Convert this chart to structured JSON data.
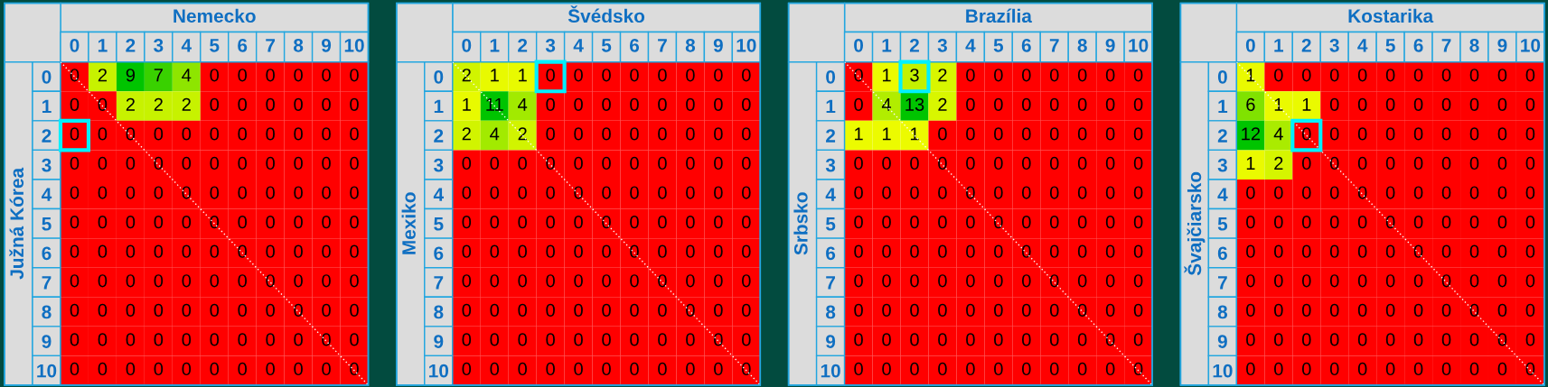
{
  "chart_data": [
    {
      "type": "heatmap",
      "xlabel": "Nemecko",
      "ylabel": "Južná Kórea",
      "data_labels": true,
      "categories": [
        "0",
        "1",
        "2",
        "3",
        "4",
        "5",
        "6",
        "7",
        "8",
        "9",
        "10"
      ],
      "y_categories": [
        "0",
        "1",
        "2",
        "3",
        "4",
        "5",
        "6",
        "7",
        "8",
        "9",
        "10"
      ],
      "cells": [
        [
          0,
          2,
          9,
          7,
          4,
          0,
          0,
          0,
          0,
          0,
          0
        ],
        [
          0,
          0,
          2,
          2,
          2,
          0,
          0,
          0,
          0,
          0,
          0
        ],
        [
          0,
          0,
          0,
          0,
          0,
          0,
          0,
          0,
          0,
          0,
          0
        ],
        [
          0,
          0,
          0,
          0,
          0,
          0,
          0,
          0,
          0,
          0,
          0
        ],
        [
          0,
          0,
          0,
          0,
          0,
          0,
          0,
          0,
          0,
          0,
          0
        ],
        [
          0,
          0,
          0,
          0,
          0,
          0,
          0,
          0,
          0,
          0,
          0
        ],
        [
          0,
          0,
          0,
          0,
          0,
          0,
          0,
          0,
          0,
          0,
          0
        ],
        [
          0,
          0,
          0,
          0,
          0,
          0,
          0,
          0,
          0,
          0,
          0
        ],
        [
          0,
          0,
          0,
          0,
          0,
          0,
          0,
          0,
          0,
          0,
          0
        ],
        [
          0,
          0,
          0,
          0,
          0,
          0,
          0,
          0,
          0,
          0,
          0
        ],
        [
          0,
          0,
          0,
          0,
          0,
          0,
          0,
          0,
          0,
          0,
          0
        ]
      ]
    },
    {
      "type": "heatmap",
      "xlabel": "Švédsko",
      "ylabel": "Mexiko",
      "data_labels": true,
      "categories": [
        "0",
        "1",
        "2",
        "3",
        "4",
        "5",
        "6",
        "7",
        "8",
        "9",
        "10"
      ],
      "y_categories": [
        "0",
        "1",
        "2",
        "3",
        "4",
        "5",
        "6",
        "7",
        "8",
        "9",
        "10"
      ],
      "cells": [
        [
          2,
          1,
          1,
          0,
          0,
          0,
          0,
          0,
          0,
          0,
          0
        ],
        [
          1,
          11,
          4,
          0,
          0,
          0,
          0,
          0,
          0,
          0,
          0
        ],
        [
          2,
          4,
          2,
          0,
          0,
          0,
          0,
          0,
          0,
          0,
          0
        ],
        [
          0,
          0,
          0,
          0,
          0,
          0,
          0,
          0,
          0,
          0,
          0
        ],
        [
          0,
          0,
          0,
          0,
          0,
          0,
          0,
          0,
          0,
          0,
          0
        ],
        [
          0,
          0,
          0,
          0,
          0,
          0,
          0,
          0,
          0,
          0,
          0
        ],
        [
          0,
          0,
          0,
          0,
          0,
          0,
          0,
          0,
          0,
          0,
          0
        ],
        [
          0,
          0,
          0,
          0,
          0,
          0,
          0,
          0,
          0,
          0,
          0
        ],
        [
          0,
          0,
          0,
          0,
          0,
          0,
          0,
          0,
          0,
          0,
          0
        ],
        [
          0,
          0,
          0,
          0,
          0,
          0,
          0,
          0,
          0,
          0,
          0
        ],
        [
          0,
          0,
          0,
          0,
          0,
          0,
          0,
          0,
          0,
          0,
          0
        ]
      ]
    },
    {
      "type": "heatmap",
      "xlabel": "Brazília",
      "ylabel": "Srbsko",
      "data_labels": true,
      "categories": [
        "0",
        "1",
        "2",
        "3",
        "4",
        "5",
        "6",
        "7",
        "8",
        "9",
        "10"
      ],
      "y_categories": [
        "0",
        "1",
        "2",
        "3",
        "4",
        "5",
        "6",
        "7",
        "8",
        "9",
        "10"
      ],
      "cells": [
        [
          0,
          1,
          3,
          2,
          0,
          0,
          0,
          0,
          0,
          0,
          0
        ],
        [
          0,
          4,
          13,
          2,
          0,
          0,
          0,
          0,
          0,
          0,
          0
        ],
        [
          1,
          1,
          1,
          0,
          0,
          0,
          0,
          0,
          0,
          0,
          0
        ],
        [
          0,
          0,
          0,
          0,
          0,
          0,
          0,
          0,
          0,
          0,
          0
        ],
        [
          0,
          0,
          0,
          0,
          0,
          0,
          0,
          0,
          0,
          0,
          0
        ],
        [
          0,
          0,
          0,
          0,
          0,
          0,
          0,
          0,
          0,
          0,
          0
        ],
        [
          0,
          0,
          0,
          0,
          0,
          0,
          0,
          0,
          0,
          0,
          0
        ],
        [
          0,
          0,
          0,
          0,
          0,
          0,
          0,
          0,
          0,
          0,
          0
        ],
        [
          0,
          0,
          0,
          0,
          0,
          0,
          0,
          0,
          0,
          0,
          0
        ],
        [
          0,
          0,
          0,
          0,
          0,
          0,
          0,
          0,
          0,
          0,
          0
        ],
        [
          0,
          0,
          0,
          0,
          0,
          0,
          0,
          0,
          0,
          0,
          0
        ]
      ]
    },
    {
      "type": "heatmap",
      "xlabel": "Kostarika",
      "ylabel": "Švajčiarsko",
      "data_labels": true,
      "categories": [
        "0",
        "1",
        "2",
        "3",
        "4",
        "5",
        "6",
        "7",
        "8",
        "9",
        "10"
      ],
      "y_categories": [
        "0",
        "1",
        "2",
        "3",
        "4",
        "5",
        "6",
        "7",
        "8",
        "9",
        "10"
      ],
      "cells": [
        [
          1,
          0,
          0,
          0,
          0,
          0,
          0,
          0,
          0,
          0,
          0
        ],
        [
          6,
          1,
          1,
          0,
          0,
          0,
          0,
          0,
          0,
          0,
          0
        ],
        [
          12,
          4,
          0,
          0,
          0,
          0,
          0,
          0,
          0,
          0,
          0
        ],
        [
          1,
          2,
          0,
          0,
          0,
          0,
          0,
          0,
          0,
          0,
          0
        ],
        [
          0,
          0,
          0,
          0,
          0,
          0,
          0,
          0,
          0,
          0,
          0
        ],
        [
          0,
          0,
          0,
          0,
          0,
          0,
          0,
          0,
          0,
          0,
          0
        ],
        [
          0,
          0,
          0,
          0,
          0,
          0,
          0,
          0,
          0,
          0,
          0
        ],
        [
          0,
          0,
          0,
          0,
          0,
          0,
          0,
          0,
          0,
          0,
          0
        ],
        [
          0,
          0,
          0,
          0,
          0,
          0,
          0,
          0,
          0,
          0,
          0
        ],
        [
          0,
          0,
          0,
          0,
          0,
          0,
          0,
          0,
          0,
          0,
          0
        ],
        [
          0,
          0,
          0,
          0,
          0,
          0,
          0,
          0,
          0,
          0,
          0
        ]
      ]
    }
  ]
}
